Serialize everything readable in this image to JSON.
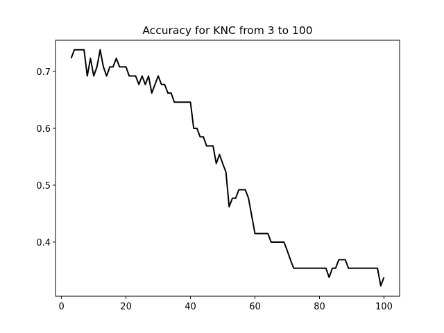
{
  "chart_data": {
    "type": "line",
    "title": "Accuracy for KNC from 3 to 100",
    "xlabel": "",
    "ylabel": "",
    "xlim": [
      -1.85,
      104.85
    ],
    "ylim": [
      0.3048,
      0.7548
    ],
    "xticks": [
      0,
      20,
      40,
      60,
      80,
      100
    ],
    "yticks": [
      0.4,
      0.5,
      0.6,
      0.7
    ],
    "grid": false,
    "line_color": "#000000",
    "series": [
      {
        "x": [
          3,
          4,
          5,
          6,
          7,
          8,
          9,
          10,
          11,
          12,
          13,
          14,
          15,
          16,
          17,
          18,
          19,
          20,
          21,
          22,
          23,
          24,
          25,
          26,
          27,
          28,
          29,
          30,
          31,
          32,
          33,
          34,
          35,
          36,
          37,
          38,
          39,
          40,
          41,
          42,
          43,
          44,
          45,
          46,
          47,
          48,
          49,
          50,
          51,
          52,
          53,
          54,
          55,
          56,
          57,
          58,
          59,
          60,
          61,
          62,
          63,
          64,
          65,
          66,
          67,
          68,
          69,
          70,
          71,
          72,
          73,
          74,
          75,
          76,
          77,
          78,
          79,
          80,
          81,
          82,
          83,
          84,
          85,
          86,
          87,
          88,
          89,
          90,
          91,
          92,
          93,
          94,
          95,
          96,
          97,
          98,
          99,
          100
        ],
        "y": [
          0.723,
          0.738,
          0.738,
          0.738,
          0.738,
          0.692,
          0.723,
          0.692,
          0.708,
          0.738,
          0.708,
          0.692,
          0.708,
          0.708,
          0.723,
          0.708,
          0.708,
          0.708,
          0.692,
          0.692,
          0.692,
          0.677,
          0.692,
          0.677,
          0.692,
          0.662,
          0.677,
          0.692,
          0.677,
          0.677,
          0.662,
          0.662,
          0.646,
          0.646,
          0.646,
          0.646,
          0.646,
          0.646,
          0.6,
          0.6,
          0.585,
          0.585,
          0.569,
          0.569,
          0.569,
          0.538,
          0.554,
          0.538,
          0.523,
          0.462,
          0.477,
          0.477,
          0.492,
          0.492,
          0.492,
          0.477,
          0.446,
          0.415,
          0.415,
          0.415,
          0.415,
          0.415,
          0.4,
          0.4,
          0.4,
          0.4,
          0.4,
          0.385,
          0.369,
          0.354,
          0.354,
          0.354,
          0.354,
          0.354,
          0.354,
          0.354,
          0.354,
          0.354,
          0.354,
          0.354,
          0.338,
          0.354,
          0.354,
          0.369,
          0.369,
          0.369,
          0.354,
          0.354,
          0.354,
          0.354,
          0.354,
          0.354,
          0.354,
          0.354,
          0.354,
          0.354,
          0.323,
          0.338
        ]
      }
    ]
  }
}
